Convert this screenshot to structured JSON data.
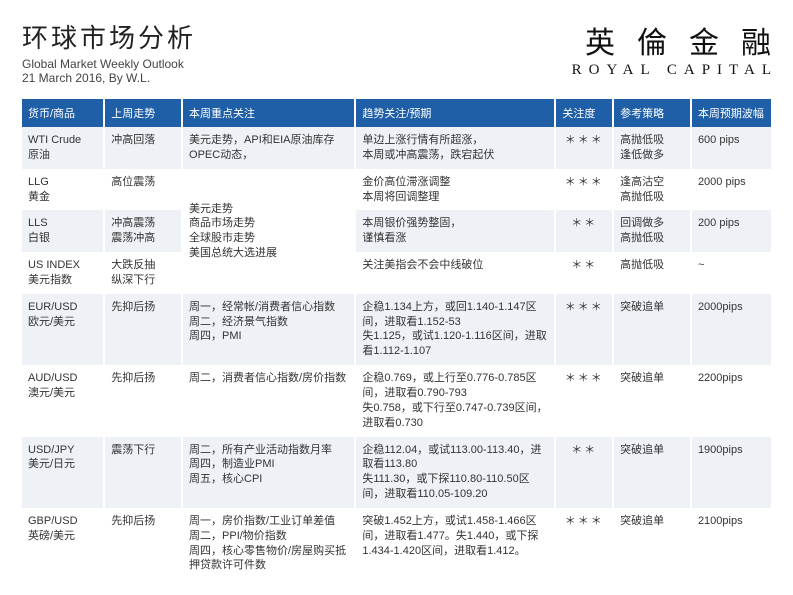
{
  "header": {
    "title_cn": "环球市场分析",
    "subtitle_en": "Global Market Weekly Outlook",
    "byline": "21 March 2016, By W.L.",
    "logo_cn": "英倫金融",
    "logo_en": "ROYAL CAPITAL"
  },
  "columns": {
    "asset": "货币/商品",
    "prev": "上周走势",
    "focus": "本周重点关注",
    "trend": "趋势关注/预期",
    "attention": "关注度",
    "strategy": "参考策略",
    "range": "本周预期波幅"
  },
  "rows": [
    {
      "asset": "WTI Crude\n原油",
      "prev": "冲高回落",
      "focus": "美元走势，API和EIA原油库存\nOPEC动态，",
      "trend": "单边上涨行情有所超涨，\n本周或冲高震荡，跌宕起伏",
      "attention": "＊＊＊",
      "strategy": "高抛低吸\n逢低做多",
      "range": "600 pips"
    },
    {
      "asset": "LLG\n黄金",
      "prev": "高位震荡",
      "focus": "",
      "trend": "金价高位滞涨调整\n本周将回调整理",
      "attention": "＊＊＊",
      "strategy": "逢高沽空\n高抛低吸",
      "range": "2000 pips"
    },
    {
      "asset": "LLS\n白银",
      "prev": "冲高震荡\n震荡冲高",
      "focus": "美元走势\n商品市场走势\n全球股市走势\n美国总统大选进展",
      "trend": "本周银价强势整固，\n谨慎看涨",
      "attention": "＊＊",
      "strategy": "回调做多\n高抛低吸",
      "range": "200 pips"
    },
    {
      "asset": "US INDEX\n美元指数",
      "prev": "大跌反抽\n纵深下行",
      "focus": "",
      "trend": "关注美指会不会中线破位",
      "attention": "＊＊",
      "strategy": "高抛低吸",
      "range": "~"
    },
    {
      "asset": "EUR/USD\n欧元/美元",
      "prev": "先抑后扬",
      "focus": "周一，经常帐/消费者信心指数\n周二，经济景气指数\n周四，PMI",
      "trend": "企稳1.134上方，或回1.140-1.147区间，进取看1.152-53\n失1.125，或试1.120-1.116区间，进取看1.112-1.107",
      "attention": "＊＊＊",
      "strategy": "突破追单",
      "range": "2000pips"
    },
    {
      "asset": "AUD/USD\n澳元/美元",
      "prev": "先抑后扬",
      "focus": "周二，消费者信心指数/房价指数",
      "trend": "企稳0.769，或上行至0.776-0.785区间，进取看0.790-793\n失0.758，或下行至0.747-0.739区间，进取看0.730",
      "attention": "＊＊＊",
      "strategy": "突破追单",
      "range": "2200pips"
    },
    {
      "asset": "USD/JPY\n美元/日元",
      "prev": "震荡下行",
      "focus": "周二，所有产业活动指数月率\n周四，制造业PMI\n周五，核心CPI",
      "trend": "企稳112.04，或试113.00-113.40，进取看113.80\n失111.30，或下探110.80-110.50区间，进取看110.05-109.20",
      "attention": "＊＊",
      "strategy": "突破追单",
      "range": "1900pips"
    },
    {
      "asset": "GBP/USD\n英磅/美元",
      "prev": "先抑后扬",
      "focus": "周一，房价指数/工业订单差值\n周二，PPI/物价指数\n周四，核心零售物价/房屋购买抵押贷款许可件数",
      "trend": "突破1.452上方，或试1.458-1.466区间，进取看1.477。失1.440，或下探1.434-1.420区间，进取看1.412。",
      "attention": "＊＊＊",
      "strategy": "突破追单",
      "range": "2100pips"
    }
  ],
  "focus_rowspans": [
    {
      "start": 1,
      "span": 3
    }
  ],
  "colors": {
    "header_bg": "#1f5fa8",
    "row_odd": "#eef2f7",
    "row_even": "#ffffff"
  }
}
